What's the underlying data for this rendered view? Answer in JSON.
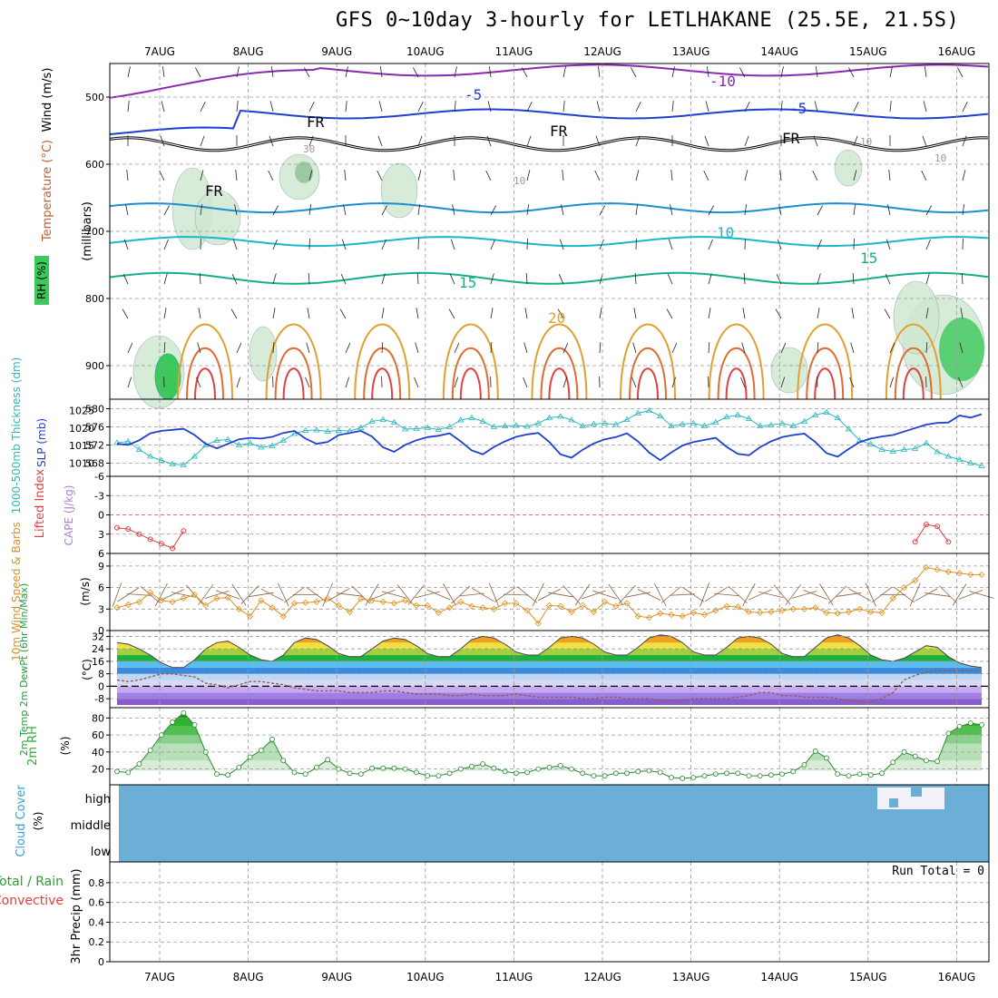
{
  "title": "GFS 0~10day 3-hourly for LETLHAKANE (25.5E, 21.5S)",
  "dates": [
    "7AUG",
    "8AUG",
    "9AUG",
    "10AUG",
    "11AUG",
    "12AUG",
    "13AUG",
    "14AUG",
    "15AUG",
    "16AUG"
  ],
  "colors": {
    "grid": "#999999",
    "rh_fill": "#3cc85a",
    "temp_blue": "#1f3fd0",
    "temp_cyan": "#1ab8c8",
    "temp_green": "#12b08a",
    "temp_orange": "#e0a030",
    "temp_red": "#e04040",
    "temp_purple": "#8a2ab0",
    "thickness": "#2ab8c0",
    "slp": "#1f3fd0",
    "lifted": "#e04040",
    "wind": "#e09020",
    "barbs": "#8a6040",
    "dewpt": "#906050",
    "rh2m": "#2ab030",
    "cloud": "#6baed6",
    "cloud_high": "#f2f2f8"
  },
  "panels": {
    "upper": {
      "ylabel_rh": "RH (%)",
      "ylabel_temp": "Temperature (°C)",
      "ylabel_wind": "Wind (m/s)",
      "ylabel_mb": "(millibars)",
      "levels": [
        500,
        600,
        700,
        800,
        900
      ],
      "contour_labels": [
        "-10",
        "-5",
        "-5",
        "FR",
        "FR",
        "FR",
        "FR",
        "10",
        "15",
        "15",
        "20",
        "30",
        "10",
        "10",
        "10"
      ]
    },
    "thickness": {
      "ylabel_left": "1000-500mb Thickness (dm)",
      "ylabel_right": "SLP (mb)",
      "left_ticks": [
        "580",
        "576",
        "572",
        "568"
      ],
      "right_ticks": [
        "1025",
        "1020",
        "1015",
        "1010"
      ]
    },
    "lifted": {
      "ylabel": "Lifted Index",
      "ylabel2": "CAPE (J/kg)",
      "ticks": [
        "-6",
        "-3",
        "0",
        "3",
        "6"
      ]
    },
    "wind10m": {
      "ylabel": "10m Wind Speed & Barbs",
      "units": "(m/s)",
      "ticks": [
        "9",
        "6",
        "3",
        "0"
      ]
    },
    "temp2m": {
      "ylabel": "2m Temp 2m DewPt (6hr Min/Max)",
      "units": "(°C)",
      "ticks": [
        "32",
        "24",
        "16",
        "8",
        "0",
        "-8"
      ]
    },
    "rh2m": {
      "ylabel": "2m RH",
      "units": "(%)",
      "ticks": [
        "80",
        "60",
        "40",
        "20"
      ]
    },
    "cloud": {
      "ylabel": "Cloud Cover",
      "units": "(%)",
      "levels": [
        "high",
        "middle",
        "low"
      ]
    },
    "precip": {
      "ylabel": "3hr Precip (mm)",
      "legend1": "Total / Rain",
      "legend2": "Convective",
      "ticks": [
        "0.8",
        "0.6",
        "0.4",
        "0.2",
        "0"
      ],
      "run_total": "Run Total = 0"
    }
  },
  "chart_data": [
    {
      "type": "line",
      "name_ref": "thickness",
      "x": [
        "6AUG12",
        "6AUG15",
        "6AUG18",
        "6AUG21",
        "7AUG00",
        "7AUG03",
        "7AUG06",
        "7AUG09",
        "7AUG12",
        "7AUG15",
        "7AUG18",
        "7AUG21",
        "8AUG00",
        "8AUG03",
        "8AUG06",
        "8AUG09",
        "8AUG12",
        "8AUG15",
        "8AUG18",
        "8AUG21",
        "9AUG00",
        "9AUG03",
        "9AUG06",
        "9AUG09",
        "9AUG12",
        "9AUG15",
        "9AUG18",
        "9AUG21",
        "10AUG00",
        "10AUG03",
        "10AUG06",
        "10AUG09",
        "10AUG12",
        "10AUG15",
        "10AUG18",
        "10AUG21",
        "11AUG00",
        "11AUG03",
        "11AUG06",
        "11AUG09",
        "11AUG12",
        "11AUG15",
        "11AUG18",
        "11AUG21",
        "12AUG00",
        "12AUG03",
        "12AUG06",
        "12AUG09",
        "12AUG12",
        "12AUG15",
        "12AUG18",
        "12AUG21",
        "13AUG00",
        "13AUG03",
        "13AUG06",
        "13AUG09",
        "13AUG12",
        "13AUG15",
        "13AUG18",
        "13AUG21",
        "14AUG00",
        "14AUG03",
        "14AUG06",
        "14AUG09",
        "14AUG12",
        "14AUG15",
        "14AUG18",
        "14AUG21",
        "15AUG00",
        "15AUG03",
        "15AUG06",
        "15AUG09",
        "15AUG12",
        "15AUG15",
        "15AUG18",
        "15AUG21",
        "16AUG00",
        "16AUG03",
        "16AUG06"
      ],
      "series": [
        {
          "axis": "left",
          "values": [
            572.5,
            572.8,
            571.0,
            569.5,
            568.6,
            567.8,
            567.6,
            569.5,
            572.0,
            573.0,
            573.2,
            572.0,
            572.4,
            571.5,
            571.8,
            573.0,
            574.5,
            575.2,
            575.3,
            575.0,
            575.2,
            575.1,
            575.8,
            577.2,
            577.6,
            577.0,
            575.5,
            575.6,
            575.8,
            575.4,
            576.0,
            577.5,
            578.0,
            577.2,
            576.0,
            576.2,
            576.3,
            576.1,
            576.8,
            578.0,
            578.3,
            577.5,
            576.2,
            576.6,
            576.8,
            576.5,
            577.6,
            579.0,
            579.6,
            578.4,
            576.2,
            576.6,
            576.8,
            576.2,
            577.0,
            578.2,
            578.6,
            577.8,
            576.2,
            576.4,
            576.8,
            576.2,
            577.2,
            578.6,
            579.2,
            578.0,
            575.5,
            573.0,
            572.2,
            571.0,
            570.6,
            571.0,
            571.2,
            572.4,
            570.5,
            569.5,
            568.8,
            568.0,
            567.4
          ]
        },
        {
          "axis": "right",
          "values": [
            1015.5,
            1015.2,
            1016.5,
            1018.5,
            1019.2,
            1019.5,
            1019.8,
            1018.0,
            1015.5,
            1014.2,
            1015.5,
            1016.8,
            1017.2,
            1017.0,
            1017.5,
            1018.6,
            1019.2,
            1017.0,
            1015.5,
            1016.0,
            1018.0,
            1018.6,
            1019.2,
            1017.6,
            1014.5,
            1013.2,
            1015.2,
            1016.5,
            1017.4,
            1017.8,
            1018.5,
            1016.2,
            1013.6,
            1012.5,
            1014.6,
            1016.2,
            1017.5,
            1018.2,
            1018.6,
            1016.0,
            1012.5,
            1011.5,
            1013.8,
            1015.6,
            1016.8,
            1017.4,
            1018.5,
            1016.2,
            1013.0,
            1010.8,
            1013.0,
            1015.0,
            1016.0,
            1016.6,
            1017.2,
            1014.6,
            1012.6,
            1012.2,
            1014.5,
            1016.2,
            1017.4,
            1018.0,
            1018.4,
            1016.0,
            1012.8,
            1011.8,
            1014.0,
            1016.0,
            1017.0,
            1017.6,
            1018.0,
            1019.0,
            1020.0,
            1021.0,
            1021.5,
            1021.6,
            1023.6,
            1023.0,
            1024.0
          ]
        }
      ]
    },
    {
      "type": "line",
      "name_ref": "lifted",
      "x": [
        "6AUG12",
        "6AUG15",
        "6AUG18",
        "6AUG21",
        "7AUG00",
        "7AUG03",
        "7AUG06",
        "15AUG12",
        "15AUG15",
        "15AUG18",
        "15AUG21"
      ],
      "values": [
        2.0,
        2.2,
        3.0,
        3.8,
        4.5,
        5.2,
        2.5,
        4.2,
        1.5,
        1.8,
        4.2
      ]
    },
    {
      "type": "line",
      "name_ref": "wind10m",
      "x_count": 79,
      "values": [
        3.2,
        3.6,
        4.0,
        5.3,
        4.2,
        4.0,
        4.5,
        5.0,
        3.5,
        4.5,
        4.6,
        3.0,
        2.0,
        4.2,
        3.2,
        2.0,
        3.8,
        3.9,
        4.0,
        4.5,
        3.5,
        2.6,
        4.4,
        4.2,
        4.0,
        3.8,
        4.2,
        3.5,
        3.5,
        2.5,
        3.2,
        4.0,
        3.4,
        3.2,
        3.0,
        3.8,
        3.8,
        2.8,
        1.0,
        3.5,
        3.4,
        2.6,
        3.5,
        2.6,
        4.0,
        3.4,
        3.8,
        2.0,
        1.8,
        2.4,
        2.2,
        2.0,
        2.5,
        2.2,
        2.8,
        3.4,
        3.3,
        2.6,
        2.5,
        2.6,
        2.8,
        3.0,
        3.0,
        3.2,
        2.5,
        2.4,
        2.6,
        3.0,
        2.6,
        2.5,
        4.5,
        6.0,
        7.0,
        8.8,
        8.5,
        8.2,
        8.0,
        7.8,
        7.8
      ]
    },
    {
      "type": "area",
      "name_ref": "temp2m",
      "x_count": 79,
      "series": [
        {
          "name": "temp",
          "values": [
            28,
            27,
            24,
            20,
            15,
            12,
            12,
            17,
            24,
            28,
            29,
            25,
            20,
            17,
            16,
            20,
            28,
            31,
            30,
            26,
            21,
            19,
            19,
            24,
            29,
            31,
            30,
            26,
            21,
            19,
            19,
            24,
            30,
            32,
            31,
            27,
            22,
            20,
            20,
            25,
            31,
            32,
            31,
            27,
            22,
            20,
            20,
            25,
            31,
            33,
            32,
            28,
            22,
            20,
            20,
            25,
            31,
            32,
            31,
            27,
            21,
            19,
            19,
            25,
            31,
            33,
            31,
            26,
            20,
            17,
            16,
            18,
            22,
            26,
            25,
            19,
            15,
            13,
            12
          ]
        },
        {
          "name": "dewpt",
          "values": [
            4,
            3,
            4,
            6,
            8,
            8,
            7,
            6,
            2,
            1,
            -1,
            1,
            3,
            3,
            2,
            1,
            -1,
            -2,
            -3,
            -3,
            -3,
            -4,
            -4,
            -4,
            -3,
            -3,
            -4,
            -5,
            -5,
            -5,
            -6,
            -6,
            -5,
            -6,
            -6,
            -6,
            -5,
            -6,
            -7,
            -7,
            -7,
            -7,
            -8,
            -8,
            -7,
            -7,
            -8,
            -8,
            -8,
            -9,
            -9,
            -9,
            -8,
            -8,
            -8,
            -8,
            -7,
            -6,
            -4,
            -4,
            -6,
            -6,
            -7,
            -7,
            -7,
            -8,
            -9,
            -10,
            -10,
            -8,
            -4,
            4,
            7,
            9,
            10,
            10,
            10,
            10,
            10
          ]
        }
      ]
    },
    {
      "type": "area",
      "name_ref": "rh2m",
      "x_count": 79,
      "values": [
        17,
        16,
        26,
        42,
        60,
        75,
        86,
        72,
        40,
        14,
        13,
        22,
        34,
        42,
        55,
        30,
        16,
        14,
        22,
        31,
        20,
        15,
        14,
        21,
        21,
        21,
        20,
        16,
        12,
        12,
        15,
        20,
        23,
        26,
        21,
        17,
        15,
        16,
        20,
        22,
        24,
        20,
        15,
        12,
        12,
        15,
        15,
        17,
        18,
        16,
        10,
        9,
        10,
        12,
        14,
        15,
        15,
        12,
        12,
        13,
        14,
        17,
        25,
        41,
        33,
        14,
        12,
        14,
        13,
        15,
        28,
        40,
        35,
        30,
        29,
        62,
        70,
        74,
        72
      ]
    }
  ]
}
